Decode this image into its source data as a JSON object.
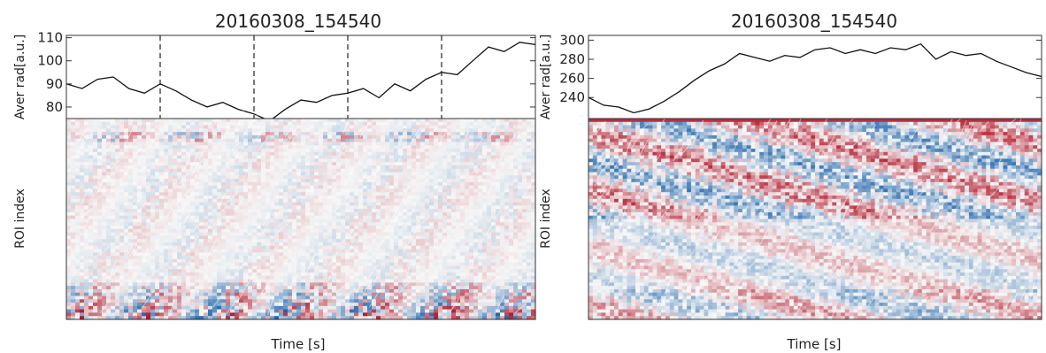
{
  "chart_data": [
    {
      "type": "line",
      "title": "20160308_154540",
      "ylabel": "Aver rad[a.u.]",
      "xlim": [
        0.293,
        0.299
      ],
      "ylim": [
        75,
        111
      ],
      "yticks": [
        80,
        90,
        100,
        110
      ],
      "vlines": [
        0.2942,
        0.2954,
        0.2966,
        0.2978
      ],
      "x": [
        0.293,
        0.2932,
        0.2934,
        0.2936,
        0.2938,
        0.294,
        0.2942,
        0.2944,
        0.2946,
        0.2948,
        0.295,
        0.2952,
        0.2954,
        0.2956,
        0.2958,
        0.296,
        0.2962,
        0.2964,
        0.2966,
        0.2968,
        0.297,
        0.2972,
        0.2974,
        0.2976,
        0.2978,
        0.298,
        0.2982,
        0.2984,
        0.2986,
        0.2988,
        0.299
      ],
      "y": [
        90,
        88,
        92,
        93,
        88,
        86,
        90,
        87,
        83,
        80,
        82,
        79,
        77,
        74,
        79,
        83,
        82,
        85,
        86,
        88,
        84,
        90,
        87,
        92,
        95,
        94,
        100,
        106,
        104,
        108,
        107
      ]
    },
    {
      "type": "heatmap",
      "xlabel": "Time [s]",
      "ylabel": "ROI index",
      "xlim": [
        0.293,
        0.299
      ],
      "ylim": [
        1,
        120
      ],
      "xticks": [
        0.294,
        0.295,
        0.296,
        0.297,
        0.298
      ],
      "yticks": [
        20,
        40,
        60,
        80,
        100,
        120
      ],
      "colormap": [
        "#2166ac",
        "#f7f7f7",
        "#b2182b"
      ]
    },
    {
      "type": "line",
      "title": "20160308_154540",
      "ylabel": "Aver rad[a.u.]",
      "xlim": [
        0.305,
        0.311
      ],
      "ylim": [
        218,
        305
      ],
      "yticks": [
        240,
        260,
        280,
        300
      ],
      "x": [
        0.305,
        0.3052,
        0.3054,
        0.3056,
        0.3058,
        0.306,
        0.3062,
        0.3064,
        0.3066,
        0.3068,
        0.307,
        0.3072,
        0.3074,
        0.3076,
        0.3078,
        0.308,
        0.3082,
        0.3084,
        0.3086,
        0.3088,
        0.309,
        0.3092,
        0.3094,
        0.3096,
        0.3098,
        0.31,
        0.3102,
        0.3104,
        0.3106,
        0.3108,
        0.311
      ],
      "y": [
        240,
        232,
        230,
        224,
        228,
        236,
        246,
        258,
        268,
        275,
        286,
        282,
        278,
        284,
        282,
        290,
        292,
        286,
        290,
        286,
        292,
        290,
        296,
        280,
        288,
        284,
        286,
        278,
        272,
        266,
        262
      ]
    },
    {
      "type": "heatmap",
      "xlabel": "Time [s]",
      "ylabel": "ROI index",
      "xlim": [
        0.305,
        0.311
      ],
      "ylim": [
        1,
        120
      ],
      "xticks": [
        0.306,
        0.307,
        0.308,
        0.309,
        0.31
      ],
      "yticks": [
        20,
        40,
        60,
        80,
        100,
        120
      ],
      "colormap": [
        "#2166ac",
        "#f7f7f7",
        "#b2182b"
      ]
    }
  ]
}
